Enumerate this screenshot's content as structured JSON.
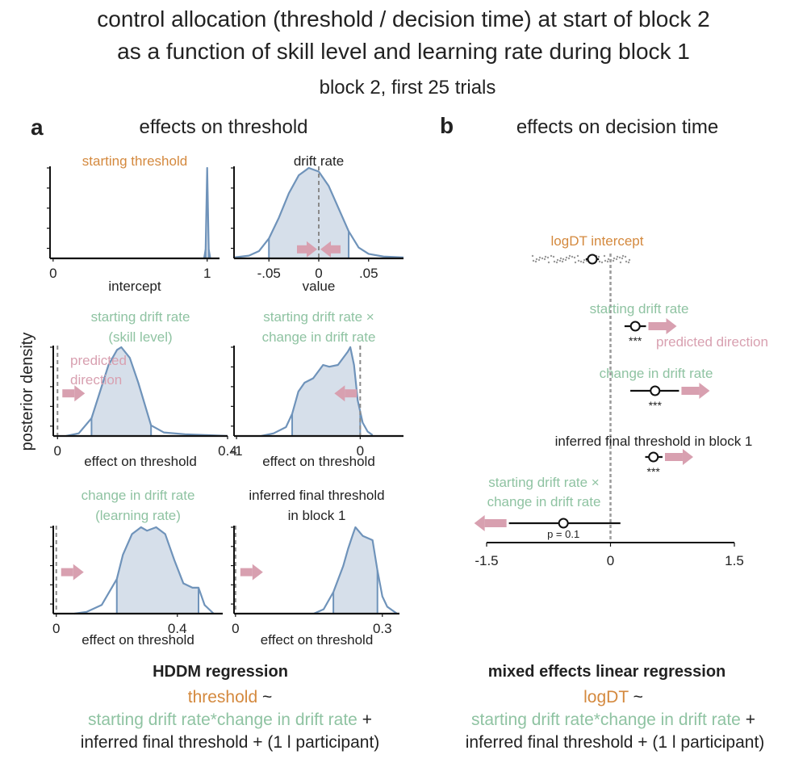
{
  "colors": {
    "orange": "#d4893e",
    "green": "#8fc3a2",
    "pink": "#d8a0b0",
    "curve": "#6f93ba",
    "fill": "#d6dfea",
    "dark": "#222222",
    "dash": "#8a8a8a"
  },
  "header": {
    "title_line1": "control allocation (threshold / decision time) at start of block 2",
    "title_line2": "as a function of skill level and learning rate during block 1",
    "subtitle": "block 2, first 25 trials"
  },
  "panel_a": {
    "letter": "a",
    "title": "effects on threshold",
    "ylabel": "posterior density",
    "predicted_direction_line1": "predicted",
    "predicted_direction_line2": "direction"
  },
  "panel_b": {
    "letter": "b",
    "title": "effects on decision time",
    "predicted_direction": "predicted direction"
  },
  "footer_a": {
    "heading": "HDDM regression",
    "dv": "threshold",
    "tilde": " ~",
    "predictors": "starting drift rate*change in drift rate",
    "plus": " +",
    "line3": "inferred final threshold + (1 l participant)"
  },
  "footer_b": {
    "heading": "mixed effects linear regression",
    "dv": "logDT",
    "tilde": " ~",
    "predictors": "starting drift rate*change in drift rate",
    "plus": " +",
    "line3": "inferred final threshold + (1 l participant)"
  },
  "chart_data": [
    {
      "type": "area",
      "panel": "a1",
      "title": "starting threshold",
      "title_color": "orange",
      "xlabel": "intercept",
      "xlim": [
        -0.02,
        1.08
      ],
      "xticks": [
        {
          "v": 0,
          "label": "0"
        },
        {
          "v": 1,
          "label": "1"
        }
      ],
      "ref_line": null,
      "arrow": null,
      "hdi": [
        0.99,
        1.01
      ],
      "density": [
        [
          0.98,
          0
        ],
        [
          0.99,
          0.1
        ],
        [
          0.995,
          0.55
        ],
        [
          1.0,
          1.0
        ],
        [
          1.005,
          0.55
        ],
        [
          1.01,
          0.1
        ],
        [
          1.02,
          0
        ]
      ]
    },
    {
      "type": "area",
      "panel": "a2",
      "title": "drift rate",
      "title_color": "dark",
      "xlabel": "value",
      "xlim": [
        -0.085,
        0.085
      ],
      "xticks": [
        {
          "v": -0.05,
          "label": "-.05"
        },
        {
          "v": 0,
          "label": "0"
        },
        {
          "v": 0.05,
          "label": ".05"
        }
      ],
      "ref_line": 0,
      "arrow": "both",
      "hdi": [
        -0.05,
        0.03
      ],
      "density": [
        [
          -0.085,
          0.01
        ],
        [
          -0.07,
          0.03
        ],
        [
          -0.06,
          0.08
        ],
        [
          -0.05,
          0.22
        ],
        [
          -0.04,
          0.45
        ],
        [
          -0.03,
          0.72
        ],
        [
          -0.02,
          0.92
        ],
        [
          -0.01,
          1.0
        ],
        [
          0,
          0.96
        ],
        [
          0.01,
          0.8
        ],
        [
          0.02,
          0.55
        ],
        [
          0.03,
          0.3
        ],
        [
          0.04,
          0.12
        ],
        [
          0.05,
          0.05
        ],
        [
          0.065,
          0.02
        ],
        [
          0.085,
          0.01
        ]
      ]
    },
    {
      "type": "area",
      "panel": "a3",
      "title_line1": "starting drift rate",
      "title_line2": "(skill level)",
      "title_color": "green",
      "xlabel": "effect on threshold",
      "xlim": [
        -0.01,
        0.4
      ],
      "xticks": [
        {
          "v": 0,
          "label": "0"
        },
        {
          "v": 0.4,
          "label": "0.4"
        }
      ],
      "ref_line": 0,
      "arrow": "right",
      "hdi": [
        0.08,
        0.22
      ],
      "density": [
        [
          0.02,
          0
        ],
        [
          0.05,
          0.03
        ],
        [
          0.08,
          0.2
        ],
        [
          0.1,
          0.5
        ],
        [
          0.12,
          0.8
        ],
        [
          0.14,
          0.97
        ],
        [
          0.15,
          1.0
        ],
        [
          0.17,
          0.88
        ],
        [
          0.19,
          0.6
        ],
        [
          0.21,
          0.28
        ],
        [
          0.22,
          0.12
        ],
        [
          0.25,
          0.04
        ],
        [
          0.3,
          0.02
        ],
        [
          0.35,
          0.01
        ],
        [
          0.4,
          0
        ]
      ]
    },
    {
      "type": "area",
      "panel": "a4",
      "title_line1": "starting drift rate ×",
      "title_line2": "change in drift rate",
      "title_color": "green",
      "xlabel": "effect on threshold",
      "xlim": [
        -1.02,
        0.35
      ],
      "xticks": [
        {
          "v": -1,
          "label": "-1"
        },
        {
          "v": 0,
          "label": "0"
        }
      ],
      "ref_line": 0,
      "arrow": "left",
      "hdi": [
        -0.55,
        0.0
      ],
      "density": [
        [
          -0.8,
          0
        ],
        [
          -0.7,
          0.03
        ],
        [
          -0.6,
          0.1
        ],
        [
          -0.55,
          0.25
        ],
        [
          -0.5,
          0.5
        ],
        [
          -0.45,
          0.6
        ],
        [
          -0.38,
          0.65
        ],
        [
          -0.3,
          0.8
        ],
        [
          -0.25,
          0.78
        ],
        [
          -0.18,
          0.8
        ],
        [
          -0.1,
          0.95
        ],
        [
          -0.08,
          1.0
        ],
        [
          -0.05,
          0.8
        ],
        [
          -0.02,
          0.4
        ],
        [
          0.02,
          0.15
        ],
        [
          0.06,
          0.05
        ],
        [
          0.1,
          0.01
        ]
      ]
    },
    {
      "type": "area",
      "panel": "a5",
      "title_line1": "change in drift rate",
      "title_line2": "(learning rate)",
      "title_color": "green",
      "xlabel": "effect on threshold",
      "xlim": [
        -0.01,
        0.55
      ],
      "xticks": [
        {
          "v": 0,
          "label": "0"
        },
        {
          "v": 0.4,
          "label": "0.4"
        }
      ],
      "ref_line": 0,
      "arrow": "right",
      "hdi": [
        0.2,
        0.47
      ],
      "density": [
        [
          0.06,
          0
        ],
        [
          0.1,
          0.02
        ],
        [
          0.15,
          0.1
        ],
        [
          0.2,
          0.4
        ],
        [
          0.22,
          0.68
        ],
        [
          0.25,
          0.92
        ],
        [
          0.28,
          1.0
        ],
        [
          0.3,
          0.96
        ],
        [
          0.33,
          1.0
        ],
        [
          0.36,
          0.92
        ],
        [
          0.39,
          0.62
        ],
        [
          0.42,
          0.35
        ],
        [
          0.45,
          0.3
        ],
        [
          0.47,
          0.3
        ],
        [
          0.49,
          0.1
        ],
        [
          0.52,
          0
        ]
      ]
    },
    {
      "type": "area",
      "panel": "a6",
      "title_line1": "inferred final threshold",
      "title_line2": "in block 1",
      "title_color": "dark",
      "xlabel": "effect on threshold",
      "xlim": [
        -0.003,
        0.335
      ],
      "xticks": [
        {
          "v": 0,
          "label": "0"
        },
        {
          "v": 0.3,
          "label": "0.3"
        }
      ],
      "ref_line": 0,
      "arrow": "right",
      "hdi": [
        0.2,
        0.29
      ],
      "density": [
        [
          0.16,
          0
        ],
        [
          0.18,
          0.05
        ],
        [
          0.2,
          0.25
        ],
        [
          0.22,
          0.55
        ],
        [
          0.23,
          0.75
        ],
        [
          0.24,
          0.92
        ],
        [
          0.245,
          1.0
        ],
        [
          0.26,
          0.9
        ],
        [
          0.28,
          0.85
        ],
        [
          0.29,
          0.5
        ],
        [
          0.3,
          0.2
        ],
        [
          0.31,
          0.08
        ],
        [
          0.33,
          0
        ]
      ]
    },
    {
      "type": "scatter",
      "panel": "b",
      "xlim": [
        -1.5,
        1.5
      ],
      "xticks": [
        {
          "v": -1.5,
          "label": "-1.5"
        },
        {
          "v": 0,
          "label": "0"
        },
        {
          "v": 1.5,
          "label": "1.5"
        }
      ],
      "effects": [
        {
          "name": "logDT intercept",
          "color": "orange",
          "estimate": -0.22,
          "ci": [
            -0.3,
            -0.14
          ],
          "sig": "",
          "arrow": null
        },
        {
          "name": "starting drift rate",
          "color": "green",
          "estimate": 0.3,
          "ci": [
            0.17,
            0.43
          ],
          "sig": "***",
          "arrow": "right"
        },
        {
          "name": "change in drift rate",
          "color": "green",
          "estimate": 0.54,
          "ci": [
            0.24,
            0.83
          ],
          "sig": "***",
          "arrow": "right"
        },
        {
          "name": "inferred final threshold in block 1",
          "color": "dark",
          "estimate": 0.52,
          "ci": [
            0.42,
            0.63
          ],
          "sig": "***",
          "arrow": "right"
        },
        {
          "name_line1": "starting drift rate ×",
          "name_line2": "change in drift rate",
          "color": "green",
          "estimate": -0.57,
          "ci": [
            -1.23,
            0.12
          ],
          "sig": "p = 0.1",
          "arrow": "left"
        }
      ]
    }
  ]
}
